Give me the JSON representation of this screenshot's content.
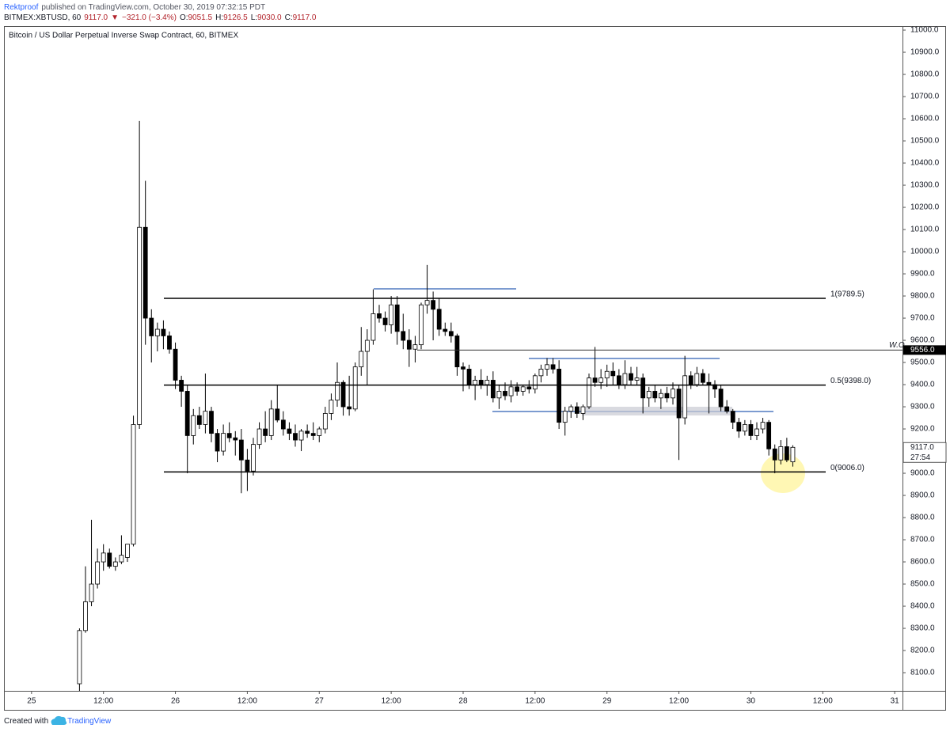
{
  "header": {
    "author": "Rektproof",
    "published": "published on TradingView.com, October 30, 2019 07:32:15 PDT",
    "quote": [
      {
        "text": "BITMEX:XBTUSD, 60",
        "color": "#131722"
      },
      {
        "text": "9117.0",
        "color": "#b2222a"
      },
      {
        "text": "▼",
        "color": "#b2222a"
      },
      {
        "text": "−321.0 (−3.4%)",
        "color": "#b2222a"
      },
      {
        "text": "O:",
        "color": "#131722"
      },
      {
        "text": "9051.5",
        "color": "#b2222a"
      },
      {
        "text": "H:",
        "color": "#131722"
      },
      {
        "text": "9126.5",
        "color": "#b2222a"
      },
      {
        "text": "L:",
        "color": "#131722"
      },
      {
        "text": "9030.0",
        "color": "#b2222a"
      },
      {
        "text": "C:",
        "color": "#131722"
      },
      {
        "text": "9117.0",
        "color": "#b2222a"
      }
    ]
  },
  "footer": {
    "created": "Created with",
    "brand": "TradingView"
  },
  "chart_data": {
    "type": "candlestick",
    "title": "Bitcoin / US Dollar Perpetual Inverse Swap Contract, 60, BITMEX",
    "up_color": "#ffffff",
    "down_color": "#000000",
    "outline_color": "#000000",
    "xlim": [
      -4.6,
      145.3
    ],
    "ylim": [
      8018,
      11018
    ],
    "xticks": [
      {
        "value": 0,
        "label": "25"
      },
      {
        "value": 12,
        "label": "12:00"
      },
      {
        "value": 24,
        "label": "26"
      },
      {
        "value": 36,
        "label": "12:00"
      },
      {
        "value": 48,
        "label": "27"
      },
      {
        "value": 60,
        "label": "12:00"
      },
      {
        "value": 72,
        "label": "28"
      },
      {
        "value": 84,
        "label": "12:00"
      },
      {
        "value": 96,
        "label": "29"
      },
      {
        "value": 108,
        "label": "12:00"
      },
      {
        "value": 120,
        "label": "30"
      },
      {
        "value": 132,
        "label": "12:00"
      },
      {
        "value": 144,
        "label": "31"
      }
    ],
    "yticks": [
      {
        "value": 8100,
        "label": "8100.0"
      },
      {
        "value": 8200,
        "label": "8200.0"
      },
      {
        "value": 8300,
        "label": "8300.0"
      },
      {
        "value": 8400,
        "label": "8400.0"
      },
      {
        "value": 8500,
        "label": "8500.0"
      },
      {
        "value": 8600,
        "label": "8600.0"
      },
      {
        "value": 8700,
        "label": "8700.0"
      },
      {
        "value": 8800,
        "label": "8800.0"
      },
      {
        "value": 8900,
        "label": "8900.0"
      },
      {
        "value": 9000,
        "label": "9000.0"
      },
      {
        "value": 9100,
        "label": "9100.0"
      },
      {
        "value": 9200,
        "label": "9200.0"
      },
      {
        "value": 9300,
        "label": "9300.0"
      },
      {
        "value": 9400,
        "label": "9400.0"
      },
      {
        "value": 9500,
        "label": "9500.0"
      },
      {
        "value": 9600,
        "label": "9600.0"
      },
      {
        "value": 9700,
        "label": "9700.0"
      },
      {
        "value": 9800,
        "label": "9800.0"
      },
      {
        "value": 9900,
        "label": "9900.0"
      },
      {
        "value": 10000,
        "label": "10000.0"
      },
      {
        "value": 10100,
        "label": "10100.0"
      },
      {
        "value": 10200,
        "label": "10200.0"
      },
      {
        "value": 10300,
        "label": "10300.0"
      },
      {
        "value": 10400,
        "label": "10400.0"
      },
      {
        "value": 10500,
        "label": "10500.0"
      },
      {
        "value": 10600,
        "label": "10600.0"
      },
      {
        "value": 10700,
        "label": "10700.0"
      },
      {
        "value": 10800,
        "label": "10800.0"
      },
      {
        "value": 10900,
        "label": "10900.0"
      },
      {
        "value": 11000,
        "label": "11000.0"
      }
    ],
    "x": [
      8,
      9,
      10,
      11,
      12,
      13,
      14,
      15,
      16,
      17,
      18,
      19,
      20,
      21,
      22,
      23,
      24,
      25,
      26,
      27,
      28,
      29,
      30,
      31,
      32,
      33,
      34,
      35,
      36,
      37,
      38,
      39,
      40,
      41,
      42,
      43,
      44,
      45,
      46,
      47,
      48,
      49,
      50,
      51,
      52,
      53,
      54,
      55,
      56,
      57,
      58,
      59,
      60,
      61,
      62,
      63,
      64,
      65,
      66,
      67,
      68,
      69,
      70,
      71,
      72,
      73,
      74,
      75,
      76,
      77,
      78,
      79,
      80,
      81,
      82,
      83,
      84,
      85,
      86,
      87,
      88,
      89,
      90,
      91,
      92,
      93,
      94,
      95,
      96,
      97,
      98,
      99,
      100,
      101,
      102,
      103,
      104,
      105,
      106,
      107,
      108,
      109,
      110,
      111,
      112,
      113,
      114,
      115,
      116,
      117,
      118,
      119,
      120,
      121,
      122,
      123,
      124,
      125,
      126,
      127
    ],
    "open": [
      8050,
      8290,
      8420,
      8500,
      8600,
      8640,
      8580,
      8600,
      8620,
      8680,
      9220,
      10110,
      9700,
      9620,
      9650,
      9620,
      9560,
      9420,
      9370,
      9170,
      9260,
      9220,
      9280,
      9180,
      9100,
      9180,
      9160,
      9150,
      9060,
      9010,
      9130,
      9200,
      9170,
      9290,
      9240,
      9200,
      9180,
      9150,
      9190,
      9180,
      9170,
      9200,
      9270,
      9330,
      9410,
      9300,
      9290,
      9480,
      9550,
      9600,
      9720,
      9700,
      9670,
      9760,
      9640,
      9600,
      9560,
      9580,
      9760,
      9780,
      9740,
      9650,
      9640,
      9620,
      9480,
      9470,
      9400,
      9420,
      9400,
      9420,
      9340,
      9370,
      9350,
      9390,
      9370,
      9390,
      9380,
      9440,
      9470,
      9490,
      9470,
      9230,
      9280,
      9300,
      9270,
      9300,
      9430,
      9410,
      9430,
      9460,
      9440,
      9400,
      9450,
      9420,
      9430,
      9340,
      9370,
      9340,
      9360,
      9340,
      9380,
      9250,
      9440,
      9400,
      9450,
      9410,
      9400,
      9380,
      9300,
      9280,
      9230,
      9190,
      9220,
      9170,
      9200,
      9230,
      9110,
      9060,
      9120,
      9051.5
    ],
    "high": [
      8300,
      8580,
      8790,
      8660,
      8680,
      8660,
      8620,
      8720,
      8680,
      9260,
      10590,
      10320,
      9740,
      9680,
      9690,
      9640,
      9590,
      9440,
      9400,
      9290,
      9300,
      9450,
      9300,
      9200,
      9220,
      9230,
      9190,
      9200,
      9110,
      9160,
      9230,
      9280,
      9330,
      9400,
      9280,
      9230,
      9220,
      9200,
      9220,
      9230,
      9210,
      9300,
      9360,
      9500,
      9420,
      9440,
      9500,
      9660,
      9650,
      9830,
      9760,
      9730,
      9800,
      9800,
      9720,
      9650,
      9620,
      9770,
      9940,
      9820,
      9790,
      9680,
      9680,
      9630,
      9500,
      9490,
      9440,
      9470,
      9440,
      9460,
      9400,
      9410,
      9420,
      9410,
      9400,
      9420,
      9450,
      9490,
      9520,
      9520,
      9510,
      9300,
      9310,
      9320,
      9310,
      9450,
      9570,
      9470,
      9490,
      9500,
      9470,
      9510,
      9480,
      9480,
      9450,
      9390,
      9400,
      9380,
      9390,
      9410,
      9400,
      9530,
      9460,
      9480,
      9470,
      9450,
      9420,
      9400,
      9330,
      9290,
      9250,
      9240,
      9240,
      9230,
      9250,
      9240,
      9130,
      9150,
      9160,
      9126.5
    ],
    "low": [
      7990,
      8280,
      8400,
      8480,
      8560,
      8570,
      8560,
      8590,
      8600,
      8670,
      9200,
      9580,
      9500,
      9550,
      9560,
      9540,
      9380,
      9300,
      9000,
      9130,
      9200,
      9180,
      9140,
      9050,
      9080,
      9140,
      9080,
      8910,
      8920,
      8990,
      9110,
      9140,
      9150,
      9230,
      9170,
      9150,
      9120,
      9100,
      9160,
      9150,
      9140,
      9180,
      9240,
      9300,
      9260,
      9260,
      9280,
      9440,
      9400,
      9580,
      9680,
      9640,
      9630,
      9580,
      9560,
      9480,
      9500,
      9560,
      9720,
      9600,
      9620,
      9620,
      9590,
      9440,
      9370,
      9380,
      9330,
      9380,
      9350,
      9320,
      9290,
      9330,
      9320,
      9350,
      9350,
      9360,
      9360,
      9410,
      9440,
      9450,
      9200,
      9170,
      9250,
      9250,
      9240,
      9290,
      9390,
      9380,
      9390,
      9400,
      9380,
      9380,
      9400,
      9400,
      9270,
      9300,
      9320,
      9290,
      9320,
      9310,
      9060,
      9220,
      9380,
      9390,
      9400,
      9270,
      9340,
      9280,
      9270,
      9200,
      9160,
      9170,
      9150,
      9150,
      9180,
      9080,
      9000,
      9040,
      9050,
      9030
    ],
    "close": [
      8290,
      8420,
      8500,
      8600,
      8640,
      8580,
      8600,
      8630,
      8680,
      9220,
      10110,
      9700,
      9620,
      9650,
      9620,
      9560,
      9420,
      9370,
      9170,
      9260,
      9220,
      9280,
      9180,
      9100,
      9180,
      9160,
      9150,
      9060,
      9010,
      9130,
      9200,
      9170,
      9290,
      9240,
      9200,
      9180,
      9150,
      9190,
      9180,
      9170,
      9200,
      9270,
      9330,
      9410,
      9300,
      9290,
      9480,
      9550,
      9600,
      9720,
      9700,
      9670,
      9760,
      9640,
      9600,
      9560,
      9580,
      9760,
      9780,
      9740,
      9650,
      9640,
      9620,
      9480,
      9470,
      9400,
      9420,
      9400,
      9420,
      9340,
      9370,
      9350,
      9390,
      9370,
      9390,
      9380,
      9440,
      9470,
      9490,
      9470,
      9230,
      9280,
      9300,
      9270,
      9300,
      9430,
      9410,
      9430,
      9460,
      9440,
      9400,
      9450,
      9420,
      9430,
      9340,
      9370,
      9340,
      9360,
      9340,
      9380,
      9250,
      9440,
      9400,
      9450,
      9410,
      9400,
      9380,
      9300,
      9280,
      9230,
      9190,
      9220,
      9170,
      9200,
      9230,
      9110,
      9060,
      9120,
      9060,
      9117
    ],
    "levels": [
      {
        "value": 9789.5,
        "label": "1(9789.5)"
      },
      {
        "value": 9398,
        "label": "0.5(9398.0)"
      },
      {
        "value": 9006,
        "label": "0(9006.0)"
      }
    ],
    "marker_line": {
      "name": "W.O",
      "value": 9556,
      "label": "9556.0"
    },
    "last_price": {
      "value": 9117,
      "label": "9117.0",
      "countdown": "27:54"
    }
  }
}
